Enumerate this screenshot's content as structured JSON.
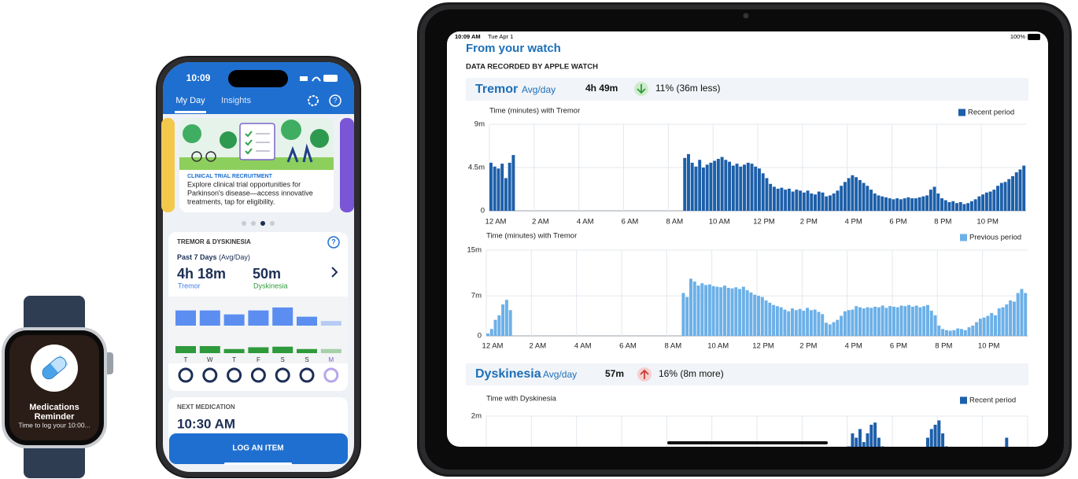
{
  "watch": {
    "title_lines": [
      "Medications",
      "Reminder"
    ],
    "body": "Time to log your 10:00..."
  },
  "phone": {
    "time": "10:09",
    "tabs": [
      "My Day",
      "Insights"
    ],
    "card": {
      "tag": "CLINICAL TRIAL RECRUITMENT",
      "lines": [
        "Explore clinical trial opportunities for",
        "Parkinson's disease—access innovative",
        "treatments, tap for eligibility."
      ]
    },
    "tremor_card": {
      "title": "TREMOR & DYSKINESIA",
      "period": "Past 7 Days",
      "period_note": "(Avg/Day)",
      "tremor_value": "4h 18m",
      "tremor_label": "Tremor",
      "dysk_value": "50m",
      "dysk_label": "Dyskinesia"
    },
    "next_med": {
      "title": "NEXT MEDICATION",
      "time": "10:30 AM"
    },
    "button": "LOG AN ITEM"
  },
  "ipad": {
    "status": {
      "time": "10:09 AM",
      "date": "Tue Apr 1",
      "battery": "100%"
    },
    "title": "From your watch",
    "subtitle": "DATA RECORDED BY APPLE WATCH",
    "sections": [
      {
        "name": "Tremor",
        "unit": "Avg/day",
        "avg": "4h 49m",
        "change": "11% (36m less)"
      },
      {
        "name": "Dyskinesia",
        "unit": "Avg/day",
        "avg": "57m",
        "change": "16% (8m more)"
      }
    ]
  },
  "chart_data": [
    {
      "type": "bar",
      "categories": [
        "T",
        "W",
        "T",
        "F",
        "S",
        "S",
        "M"
      ],
      "series": [
        {
          "name": "Tremor",
          "color": "#5b8ef0",
          "values": [
            4.6,
            4.6,
            3.4,
            4.6,
            5.5,
            2.7,
            1.4
          ]
        },
        {
          "name": "Dyskinesia",
          "color": "#2f9a3c",
          "values": [
            60,
            60,
            35,
            50,
            55,
            35,
            35
          ]
        }
      ]
    },
    {
      "type": "bar",
      "title": "Time (minutes) with Tremor",
      "xlim": [
        0,
        24
      ],
      "xticks": [
        {
          "value": 0,
          "label": "12 AM"
        },
        {
          "value": 2,
          "label": "2 AM"
        },
        {
          "value": 4,
          "label": "4 AM"
        },
        {
          "value": 6,
          "label": "6 AM"
        },
        {
          "value": 8,
          "label": "8 AM"
        },
        {
          "value": 10,
          "label": "10 AM"
        },
        {
          "value": 12,
          "label": "12 PM"
        },
        {
          "value": 14,
          "label": "2 PM"
        },
        {
          "value": 16,
          "label": "4 PM"
        },
        {
          "value": 18,
          "label": "6 PM"
        },
        {
          "value": 20,
          "label": "8 PM"
        },
        {
          "value": 22,
          "label": "10 PM"
        }
      ],
      "ylim": [
        0,
        9
      ],
      "yticks": [
        0,
        {
          "value": 4.5,
          "label": "4.5m"
        },
        {
          "value": 9,
          "label": "9m"
        }
      ],
      "grid": true,
      "legend": "top-right",
      "series": [
        {
          "name": "Recent period",
          "color": "#1d5fa9",
          "values": [
            5.0,
            4.6,
            4.4,
            4.9,
            3.4,
            5.0,
            5.8,
            null,
            null,
            null,
            null,
            null,
            null,
            null,
            null,
            null,
            null,
            null,
            null,
            null,
            null,
            null,
            null,
            null,
            null,
            null,
            null,
            null,
            null,
            null,
            null,
            null,
            null,
            null,
            null,
            null,
            null,
            null,
            null,
            null,
            null,
            null,
            null,
            null,
            null,
            null,
            null,
            null,
            null,
            null,
            null,
            null,
            5.5,
            5.9,
            5.0,
            4.6,
            5.3,
            4.5,
            4.8,
            5.0,
            5.2,
            5.4,
            5.6,
            5.3,
            5.1,
            4.7,
            4.9,
            4.6,
            4.8,
            5.0,
            4.9,
            4.6,
            4.4,
            3.9,
            3.4,
            2.8,
            2.5,
            2.3,
            2.4,
            2.2,
            2.3,
            2.0,
            2.2,
            2.1,
            1.9,
            2.1,
            1.8,
            1.7,
            2.0,
            1.9,
            1.5,
            1.6,
            1.8,
            2.1,
            2.6,
            3.0,
            3.4,
            3.7,
            3.5,
            3.2,
            2.9,
            2.6,
            2.2,
            1.8,
            1.6,
            1.5,
            1.4,
            1.3,
            1.2,
            1.3,
            1.2,
            1.3,
            1.4,
            1.3,
            1.3,
            1.4,
            1.5,
            1.6,
            2.2,
            2.5,
            1.8,
            1.3,
            1.1,
            0.9,
            1.0,
            0.8,
            0.9,
            0.7,
            0.8,
            1.0,
            1.2,
            1.5,
            1.7,
            1.9,
            2.0,
            2.2,
            2.6,
            2.9,
            3.0,
            3.3,
            3.6,
            4.0,
            4.3,
            4.7
          ]
        }
      ]
    },
    {
      "type": "bar",
      "title": "Time (minutes) with Tremor",
      "xlim": [
        0,
        24
      ],
      "xticks": [
        {
          "value": 0,
          "label": "12 AM"
        },
        {
          "value": 2,
          "label": "2 AM"
        },
        {
          "value": 4,
          "label": "4 AM"
        },
        {
          "value": 6,
          "label": "6 AM"
        },
        {
          "value": 8,
          "label": "8 AM"
        },
        {
          "value": 10,
          "label": "10 AM"
        },
        {
          "value": 12,
          "label": "12 PM"
        },
        {
          "value": 14,
          "label": "2 PM"
        },
        {
          "value": 16,
          "label": "4 PM"
        },
        {
          "value": 18,
          "label": "6 PM"
        },
        {
          "value": 20,
          "label": "8 PM"
        },
        {
          "value": 22,
          "label": "10 PM"
        }
      ],
      "ylim": [
        0,
        15
      ],
      "yticks": [
        0,
        {
          "value": 7,
          "label": "7m"
        },
        {
          "value": 15,
          "label": "15m"
        }
      ],
      "grid": true,
      "legend": "top-right",
      "series": [
        {
          "name": "Previous period",
          "color": "#6cb0e8",
          "values": [
            0.4,
            1.2,
            2.8,
            3.6,
            5.5,
            6.3,
            4.5,
            null,
            null,
            null,
            null,
            null,
            null,
            null,
            null,
            null,
            null,
            null,
            null,
            null,
            null,
            null,
            null,
            null,
            null,
            null,
            null,
            null,
            null,
            null,
            null,
            null,
            null,
            null,
            null,
            null,
            null,
            null,
            null,
            null,
            null,
            null,
            null,
            null,
            null,
            null,
            null,
            null,
            null,
            null,
            null,
            null,
            7.5,
            6.8,
            10.0,
            9.5,
            8.8,
            9.2,
            8.9,
            9.0,
            8.7,
            8.6,
            8.5,
            8.8,
            8.4,
            8.3,
            8.5,
            8.2,
            8.6,
            8.0,
            7.6,
            7.2,
            7.0,
            6.8,
            6.2,
            5.8,
            5.4,
            5.2,
            5.0,
            4.6,
            4.3,
            4.8,
            4.5,
            4.7,
            4.4,
            4.9,
            4.5,
            4.6,
            4.2,
            3.8,
            2.3,
            2.0,
            2.4,
            2.8,
            3.5,
            4.3,
            4.5,
            4.6,
            5.2,
            5.0,
            4.8,
            5.0,
            4.9,
            5.1,
            5.0,
            5.3,
            4.9,
            5.2,
            5.1,
            5.0,
            5.3,
            5.2,
            5.4,
            5.1,
            5.3,
            5.0,
            5.2,
            5.4,
            4.4,
            3.6,
            1.8,
            1.2,
            1.0,
            0.9,
            1.0,
            1.3,
            1.2,
            1.0,
            1.5,
            1.8,
            2.4,
            3.0,
            3.2,
            3.5,
            4.0,
            3.6,
            4.8,
            5.0,
            5.5,
            6.2,
            6.0,
            7.5,
            8.2,
            7.5
          ]
        }
      ]
    },
    {
      "type": "bar",
      "title": "Time with Dyskinesia",
      "xlim": [
        0,
        24
      ],
      "ylim": [
        0,
        2
      ],
      "yticks": [
        {
          "value": 2,
          "label": "2m"
        }
      ],
      "grid": true,
      "legend": "top-right",
      "series": [
        {
          "name": "Recent period",
          "color": "#1d5fa9",
          "values": [
            null,
            null,
            null,
            null,
            null,
            null,
            null,
            null,
            null,
            null,
            null,
            null,
            null,
            null,
            null,
            null,
            null,
            null,
            null,
            null,
            null,
            null,
            null,
            null,
            null,
            null,
            null,
            null,
            null,
            null,
            null,
            null,
            null,
            null,
            null,
            null,
            null,
            null,
            null,
            null,
            null,
            null,
            null,
            null,
            null,
            null,
            null,
            null,
            null,
            null,
            null,
            null,
            null,
            null,
            null,
            null,
            null,
            null,
            null,
            null,
            null,
            null,
            null,
            null,
            null,
            null,
            null,
            null,
            null,
            null,
            null,
            null,
            null,
            null,
            null,
            null,
            null,
            null,
            null,
            null,
            null,
            null,
            null,
            null,
            null,
            null,
            null,
            null,
            null,
            null,
            null,
            null,
            null,
            null,
            null,
            null,
            1.3,
            1.6,
            1.5,
            1.7,
            1.4,
            1.6,
            1.8,
            1.85,
            1.5,
            1.3,
            null,
            null,
            null,
            null,
            null,
            null,
            null,
            null,
            null,
            null,
            null,
            1.5,
            1.7,
            1.8,
            1.9,
            1.6,
            1.3,
            null,
            null,
            null,
            null,
            null,
            null,
            null,
            null,
            null,
            null,
            null,
            null,
            null,
            null,
            null,
            1.5,
            null,
            null,
            null,
            null,
            null
          ]
        }
      ]
    }
  ]
}
